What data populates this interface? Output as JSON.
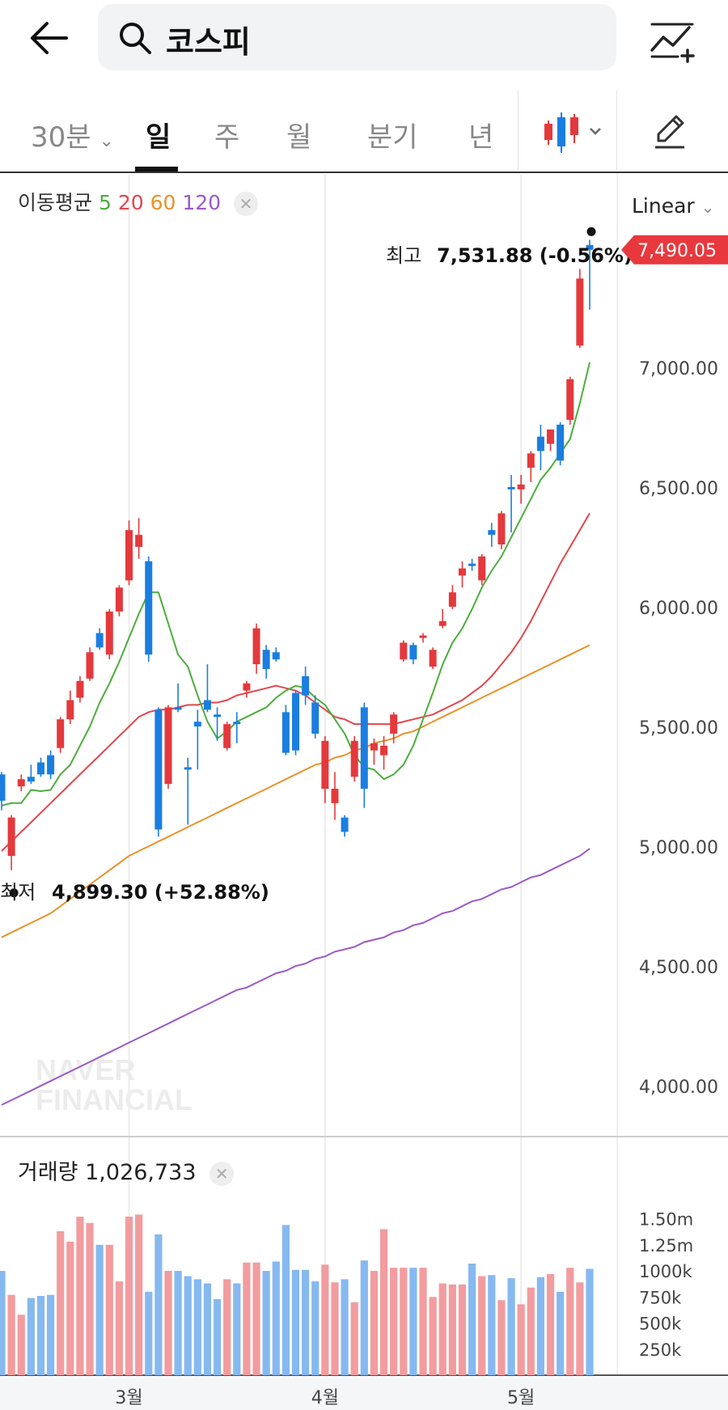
{
  "header": {
    "search_query": "코스피",
    "back_icon": "arrow-left-icon",
    "search_icon": "search-icon",
    "add_icon": "add-indicator-icon"
  },
  "tabs": [
    {
      "label": "30분",
      "dropdown": true
    },
    {
      "label": "일",
      "selected": true
    },
    {
      "label": "주"
    },
    {
      "label": "월"
    },
    {
      "label": "분기"
    },
    {
      "label": "년"
    }
  ],
  "toolbar": {
    "chart_type_icon": "candlestick-icon",
    "draw_icon": "pencil-icon",
    "scale": "Linear"
  },
  "ma_legend": {
    "label": "이동평균",
    "periods": [
      {
        "p": "5",
        "color": "#4bae3c"
      },
      {
        "p": "20",
        "color": "#e0474c"
      },
      {
        "p": "60",
        "color": "#e9922a"
      },
      {
        "p": "120",
        "color": "#9b59c8"
      }
    ]
  },
  "annotations": {
    "high_label": "최고",
    "high_value": "7,531.88 (-0.56%)",
    "low_label": "최저",
    "low_value": "4,899.30 (+52.88%)",
    "current": "7,490.05"
  },
  "volume_legend": {
    "label": "거래량",
    "value": "1,026,733"
  },
  "watermark": [
    "NAVER",
    "FINANCIAL"
  ],
  "colors": {
    "up": "#e4393c",
    "down": "#1a7ee0",
    "up_vol": "#f29c9f",
    "down_vol": "#86b9f0",
    "current_badge": "#e8383d"
  },
  "chart_data": {
    "type": "candlestick",
    "y_ticks": [
      "7,000.00",
      "6,500.00",
      "6,000.00",
      "5,500.00",
      "5,000.00",
      "4,500.00",
      "4,000.00"
    ],
    "ylim": [
      3680,
      7800
    ],
    "x_labels": [
      "3월",
      "4월",
      "5월"
    ],
    "x_label_index": [
      13,
      33,
      53
    ],
    "candles": [
      {
        "o": 5300,
        "h": 5310,
        "l": 5150,
        "c": 5190
      },
      {
        "o": 4960,
        "h": 5130,
        "l": 4900,
        "c": 5120
      },
      {
        "o": 5250,
        "h": 5300,
        "l": 5230,
        "c": 5280
      },
      {
        "o": 5290,
        "h": 5340,
        "l": 5260,
        "c": 5270
      },
      {
        "o": 5350,
        "h": 5370,
        "l": 5290,
        "c": 5300
      },
      {
        "o": 5380,
        "h": 5400,
        "l": 5280,
        "c": 5300
      },
      {
        "o": 5410,
        "h": 5540,
        "l": 5390,
        "c": 5530
      },
      {
        "o": 5530,
        "h": 5650,
        "l": 5510,
        "c": 5610
      },
      {
        "o": 5620,
        "h": 5710,
        "l": 5600,
        "c": 5690
      },
      {
        "o": 5700,
        "h": 5830,
        "l": 5690,
        "c": 5810
      },
      {
        "o": 5890,
        "h": 5910,
        "l": 5820,
        "c": 5830
      },
      {
        "o": 5800,
        "h": 5990,
        "l": 5780,
        "c": 5980
      },
      {
        "o": 5980,
        "h": 6090,
        "l": 5960,
        "c": 6080
      },
      {
        "o": 6110,
        "h": 6360,
        "l": 6090,
        "c": 6320
      },
      {
        "o": 6250,
        "h": 6370,
        "l": 6200,
        "c": 6300
      },
      {
        "o": 6190,
        "h": 6210,
        "l": 5770,
        "c": 5800
      },
      {
        "o": 5570,
        "h": 5580,
        "l": 5040,
        "c": 5070
      },
      {
        "o": 5260,
        "h": 5590,
        "l": 5240,
        "c": 5580
      },
      {
        "o": 5580,
        "h": 5680,
        "l": 5560,
        "c": 5570
      },
      {
        "o": 5330,
        "h": 5370,
        "l": 5090,
        "c": 5320
      },
      {
        "o": 5520,
        "h": 5570,
        "l": 5320,
        "c": 5500
      },
      {
        "o": 5610,
        "h": 5760,
        "l": 5560,
        "c": 5570
      },
      {
        "o": 5550,
        "h": 5580,
        "l": 5440,
        "c": 5540
      },
      {
        "o": 5410,
        "h": 5520,
        "l": 5400,
        "c": 5510
      },
      {
        "o": 5520,
        "h": 5560,
        "l": 5430,
        "c": 5510
      },
      {
        "o": 5650,
        "h": 5690,
        "l": 5620,
        "c": 5680
      },
      {
        "o": 5760,
        "h": 5930,
        "l": 5720,
        "c": 5910
      },
      {
        "o": 5820,
        "h": 5840,
        "l": 5700,
        "c": 5740
      },
      {
        "o": 5810,
        "h": 5830,
        "l": 5770,
        "c": 5780
      },
      {
        "o": 5560,
        "h": 5590,
        "l": 5380,
        "c": 5390
      },
      {
        "o": 5640,
        "h": 5650,
        "l": 5380,
        "c": 5400
      },
      {
        "o": 5710,
        "h": 5750,
        "l": 5590,
        "c": 5630
      },
      {
        "o": 5600,
        "h": 5630,
        "l": 5450,
        "c": 5470
      },
      {
        "o": 5240,
        "h": 5460,
        "l": 5180,
        "c": 5440
      },
      {
        "o": 5180,
        "h": 5310,
        "l": 5110,
        "c": 5240
      },
      {
        "o": 5120,
        "h": 5130,
        "l": 5040,
        "c": 5060
      },
      {
        "o": 5290,
        "h": 5460,
        "l": 5270,
        "c": 5440
      },
      {
        "o": 5580,
        "h": 5600,
        "l": 5160,
        "c": 5240
      },
      {
        "o": 5400,
        "h": 5450,
        "l": 5340,
        "c": 5430
      },
      {
        "o": 5380,
        "h": 5460,
        "l": 5320,
        "c": 5420
      },
      {
        "o": 5470,
        "h": 5560,
        "l": 5430,
        "c": 5550
      },
      {
        "o": 5780,
        "h": 5860,
        "l": 5770,
        "c": 5850
      },
      {
        "o": 5840,
        "h": 5850,
        "l": 5760,
        "c": 5780
      },
      {
        "o": 5870,
        "h": 5890,
        "l": 5850,
        "c": 5880
      },
      {
        "o": 5750,
        "h": 5830,
        "l": 5740,
        "c": 5820
      },
      {
        "o": 5920,
        "h": 5990,
        "l": 5910,
        "c": 5940
      },
      {
        "o": 6000,
        "h": 6090,
        "l": 5990,
        "c": 6060
      },
      {
        "o": 6130,
        "h": 6190,
        "l": 6080,
        "c": 6160
      },
      {
        "o": 6180,
        "h": 6200,
        "l": 6150,
        "c": 6170
      },
      {
        "o": 6110,
        "h": 6220,
        "l": 6090,
        "c": 6210
      },
      {
        "o": 6320,
        "h": 6350,
        "l": 6250,
        "c": 6300
      },
      {
        "o": 6260,
        "h": 6400,
        "l": 6240,
        "c": 6390
      },
      {
        "o": 6500,
        "h": 6550,
        "l": 6310,
        "c": 6490
      },
      {
        "o": 6490,
        "h": 6550,
        "l": 6430,
        "c": 6510
      },
      {
        "o": 6580,
        "h": 6650,
        "l": 6520,
        "c": 6640
      },
      {
        "o": 6710,
        "h": 6760,
        "l": 6570,
        "c": 6650
      },
      {
        "o": 6680,
        "h": 6740,
        "l": 6650,
        "c": 6740
      },
      {
        "o": 6760,
        "h": 6770,
        "l": 6590,
        "c": 6610
      },
      {
        "o": 6780,
        "h": 6960,
        "l": 6760,
        "c": 6950
      },
      {
        "o": 7090,
        "h": 7410,
        "l": 7080,
        "c": 7370
      },
      {
        "o": 7510,
        "h": 7532,
        "l": 7240,
        "c": 7490
      }
    ],
    "ma5": [
      5170,
      5180,
      5180,
      5235,
      5230,
      5235,
      5300,
      5340,
      5420,
      5500,
      5600,
      5680,
      5770,
      5870,
      5970,
      6060,
      6060,
      5930,
      5800,
      5750,
      5630,
      5520,
      5450,
      5480,
      5520,
      5540,
      5560,
      5580,
      5620,
      5650,
      5670,
      5660,
      5620,
      5590,
      5530,
      5470,
      5380,
      5330,
      5320,
      5280,
      5300,
      5340,
      5420,
      5530,
      5640,
      5760,
      5850,
      5910,
      5990,
      6080,
      6150,
      6210,
      6290,
      6370,
      6450,
      6530,
      6580,
      6640,
      6700,
      6850,
      7020
    ],
    "ma20": [
      4980,
      5020,
      5060,
      5100,
      5140,
      5180,
      5220,
      5260,
      5300,
      5340,
      5380,
      5420,
      5460,
      5500,
      5540,
      5560,
      5570,
      5570,
      5580,
      5590,
      5590,
      5600,
      5600,
      5610,
      5630,
      5640,
      5650,
      5660,
      5670,
      5660,
      5650,
      5630,
      5600,
      5570,
      5540,
      5530,
      5510,
      5510,
      5510,
      5510,
      5510,
      5520,
      5530,
      5540,
      5550,
      5570,
      5590,
      5610,
      5640,
      5670,
      5710,
      5760,
      5810,
      5870,
      5940,
      6020,
      6100,
      6180,
      6250,
      6320,
      6390
    ],
    "ma60": [
      4620,
      4640,
      4660,
      4680,
      4700,
      4720,
      4750,
      4780,
      4810,
      4840,
      4870,
      4900,
      4930,
      4960,
      4980,
      5000,
      5020,
      5040,
      5060,
      5080,
      5100,
      5120,
      5140,
      5160,
      5180,
      5200,
      5220,
      5240,
      5260,
      5280,
      5300,
      5320,
      5340,
      5350,
      5370,
      5380,
      5400,
      5410,
      5430,
      5440,
      5450,
      5470,
      5480,
      5500,
      5520,
      5540,
      5560,
      5580,
      5600,
      5620,
      5640,
      5660,
      5680,
      5700,
      5720,
      5740,
      5760,
      5780,
      5800,
      5820,
      5840
    ],
    "ma120": [
      3920,
      3940,
      3960,
      3980,
      4000,
      4020,
      4040,
      4060,
      4080,
      4100,
      4120,
      4140,
      4160,
      4180,
      4200,
      4220,
      4240,
      4260,
      4280,
      4300,
      4320,
      4340,
      4360,
      4380,
      4400,
      4410,
      4430,
      4450,
      4470,
      4480,
      4500,
      4510,
      4530,
      4540,
      4560,
      4570,
      4580,
      4600,
      4610,
      4620,
      4640,
      4650,
      4670,
      4680,
      4700,
      4720,
      4730,
      4750,
      4770,
      4780,
      4800,
      4820,
      4830,
      4850,
      4870,
      4880,
      4900,
      4920,
      4940,
      4960,
      4990
    ],
    "volume": {
      "ticks": [
        "1.50m",
        "1.25m",
        "1000k",
        "750k",
        "500k",
        "250k"
      ],
      "ylim": [
        0,
        1830000
      ],
      "values": [
        1000000,
        770000,
        580000,
        740000,
        760000,
        770000,
        1380000,
        1280000,
        1520000,
        1460000,
        1250000,
        1250000,
        900000,
        1520000,
        1540000,
        800000,
        1350000,
        1000000,
        1000000,
        950000,
        920000,
        880000,
        730000,
        920000,
        880000,
        1080000,
        1080000,
        1000000,
        1090000,
        1440000,
        1010000,
        1010000,
        900000,
        1060000,
        890000,
        920000,
        700000,
        1100000,
        1000000,
        1400000,
        1030000,
        1030000,
        1030000,
        1030000,
        750000,
        880000,
        870000,
        870000,
        1070000,
        950000,
        960000,
        720000,
        930000,
        680000,
        840000,
        940000,
        970000,
        800000,
        1030000,
        890000,
        1020000
      ]
    }
  }
}
